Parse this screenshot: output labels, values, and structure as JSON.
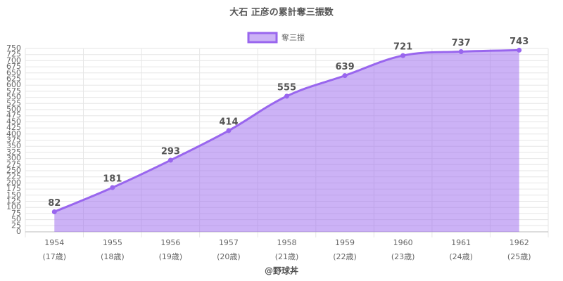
{
  "chart_data": {
    "type": "line",
    "title": "大石 正彦の累計奪三振数",
    "categories": [
      [
        "1954",
        "(17歳)"
      ],
      [
        "1955",
        "(18歳)"
      ],
      [
        "1956",
        "(19歳)"
      ],
      [
        "1957",
        "(20歳)"
      ],
      [
        "1958",
        "(21歳)"
      ],
      [
        "1959",
        "(22歳)"
      ],
      [
        "1960",
        "(23歳)"
      ],
      [
        "1961",
        "(24歳)"
      ],
      [
        "1962",
        "(25歳)"
      ]
    ],
    "series": [
      {
        "name": "奪三振",
        "color": "#9966ee",
        "values": [
          82,
          181,
          293,
          414,
          555,
          639,
          721,
          737,
          743
        ]
      }
    ],
    "ylim": [
      0,
      750
    ],
    "yticks": [
      0,
      25,
      50,
      75,
      100,
      125,
      150,
      175,
      200,
      225,
      250,
      275,
      300,
      325,
      350,
      375,
      400,
      425,
      450,
      475,
      500,
      525,
      550,
      575,
      600,
      625,
      650,
      675,
      700,
      725,
      750
    ],
    "grid": true,
    "legend": "top",
    "area": true,
    "footer": "@野球丼"
  }
}
